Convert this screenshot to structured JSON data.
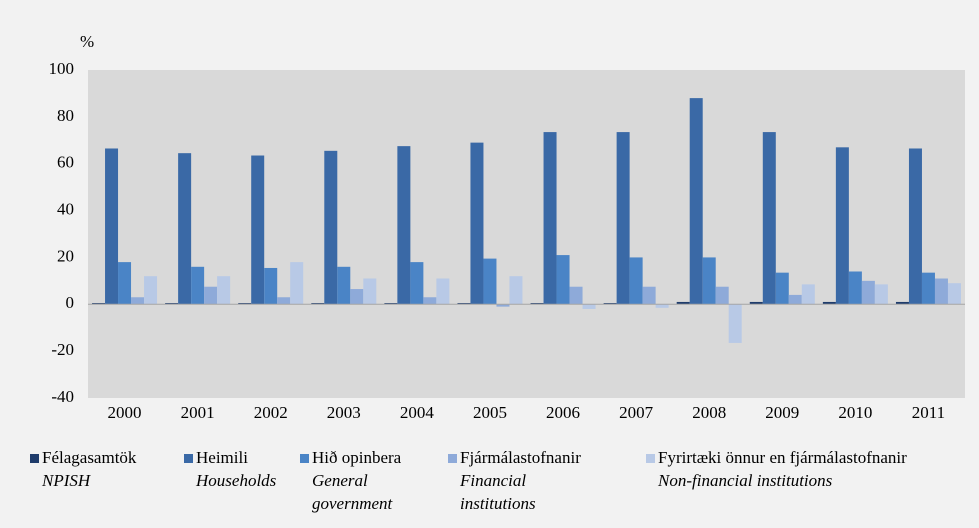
{
  "chart_data": {
    "type": "bar",
    "y_label": "%",
    "categories": [
      "2000",
      "2001",
      "2002",
      "2003",
      "2004",
      "2005",
      "2006",
      "2007",
      "2008",
      "2009",
      "2010",
      "2011"
    ],
    "series": [
      {
        "name": "Félagasamtök",
        "name_en": "NPISH",
        "color": "#1f3c6b",
        "values": [
          0.5,
          0.5,
          0.5,
          0.5,
          0.5,
          0.5,
          0.5,
          0.5,
          1,
          1,
          1,
          1
        ]
      },
      {
        "name": "Heimili",
        "name_en": "Households",
        "color": "#3a69a6",
        "values": [
          66.5,
          64.5,
          63.5,
          65.5,
          67.5,
          69,
          73.5,
          73.5,
          88,
          73.5,
          67,
          66.5
        ]
      },
      {
        "name": "Hið opinbera",
        "name_en": "General government",
        "color": "#4a84c6",
        "values": [
          18,
          16,
          15.5,
          16,
          18,
          19.5,
          21,
          20,
          20,
          13.5,
          14,
          13.5
        ]
      },
      {
        "name": "Fjármálastofnanir",
        "name_en": "Financial institutions",
        "color": "#8eaad9",
        "values": [
          3,
          7.5,
          3,
          6.5,
          3,
          -1,
          7.5,
          7.5,
          7.5,
          4,
          10,
          11
        ]
      },
      {
        "name": "Fyrirtæki önnur en fjármálastofnanir",
        "name_en": "Non-financial institutions",
        "color": "#b8c9e6",
        "values": [
          12,
          12,
          18,
          11,
          11,
          12,
          -2,
          -1.5,
          -16.5,
          8.5,
          8.5,
          9
        ]
      }
    ],
    "ylim": [
      -40,
      100
    ],
    "yticks": [
      -40,
      -20,
      0,
      20,
      40,
      60,
      80,
      100
    ],
    "grid": false
  }
}
